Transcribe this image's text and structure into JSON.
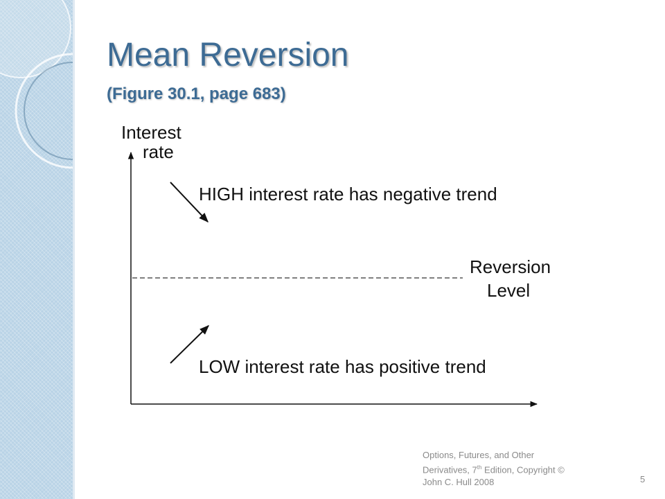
{
  "slide": {
    "title": "Mean Reversion",
    "subtitle": "(Figure 30.1, page 683)"
  },
  "diagram": {
    "y_axis_label_line1": "Interest",
    "y_axis_label_line2": "rate",
    "high_label": "HIGH interest rate has negative trend",
    "low_label": "LOW interest rate has positive trend",
    "reversion_label_line1": "Reversion",
    "reversion_label_line2": "Level"
  },
  "footer": {
    "line1": "Options, Futures, and Other",
    "line2_a": "Derivatives, 7",
    "line2_sup": "th",
    "line2_b": " Edition, Copyright ©",
    "line3": "John C. Hull 2008",
    "page_number": "5"
  },
  "colors": {
    "title": "#3d6b94",
    "side_band": "#b9d3e6",
    "text": "#111111",
    "footer": "#8a8a8a"
  }
}
